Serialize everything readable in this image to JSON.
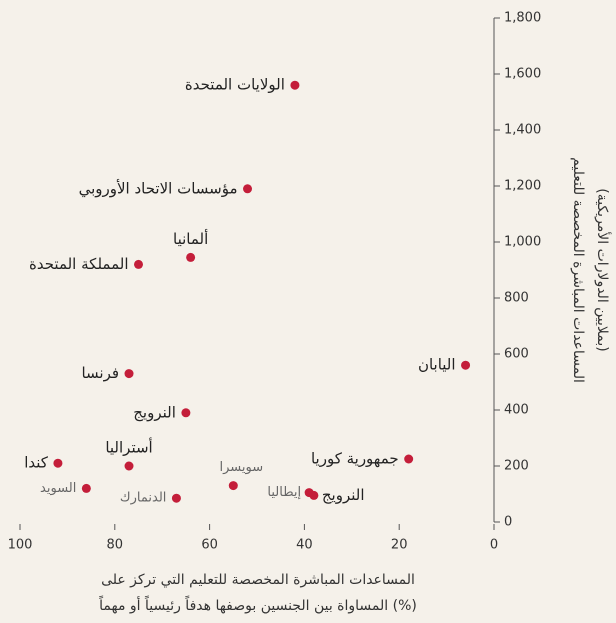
{
  "chart_data": {
    "type": "scatter",
    "x_label": [
      "المساعدات المباشرة المخصصة للتعليم التي تركز على",
      "المساواة بين الجنسين بوصفها هدفاً رئيسياً أو مهماً (%)"
    ],
    "y_label": [
      "المساعدات المباشرة المخصصة للتعليم",
      "(بملايين الدولارات الأمريكية)"
    ],
    "labels": [
      "الولايات المتحدة",
      "مؤسسات الاتحاد الأوروبي",
      "ألمانيا",
      "المملكة المتحدة",
      "اليابان",
      "فرنسا",
      "النرويج",
      "جمهورية كوريا",
      "كندا",
      "أستراليا",
      "السويد",
      "الدنمارك",
      "سويسرا",
      "إيطاليا",
      "النرويج"
    ],
    "x": [
      42,
      52,
      64,
      75,
      6,
      77,
      65,
      18,
      92,
      77,
      86,
      67,
      55,
      39,
      38
    ],
    "values": [
      1560,
      1190,
      945,
      920,
      560,
      530,
      390,
      225,
      210,
      200,
      120,
      85,
      130,
      105,
      95
    ],
    "color": "#c41e3a",
    "xlim": [
      100,
      0
    ],
    "xticks": [
      100,
      80,
      60,
      40,
      20,
      0
    ],
    "ylim": [
      0,
      1800
    ],
    "yticks": [
      0,
      {
        "value": 200,
        "label": "200"
      },
      400,
      600,
      800,
      {
        "value": 1000,
        "label": "1,000"
      },
      {
        "value": 1200,
        "label": "1,200"
      },
      {
        "value": 1400,
        "label": "1,400"
      },
      {
        "value": 1600,
        "label": "1,600"
      },
      {
        "value": 1800,
        "label": "1,800"
      }
    ]
  }
}
